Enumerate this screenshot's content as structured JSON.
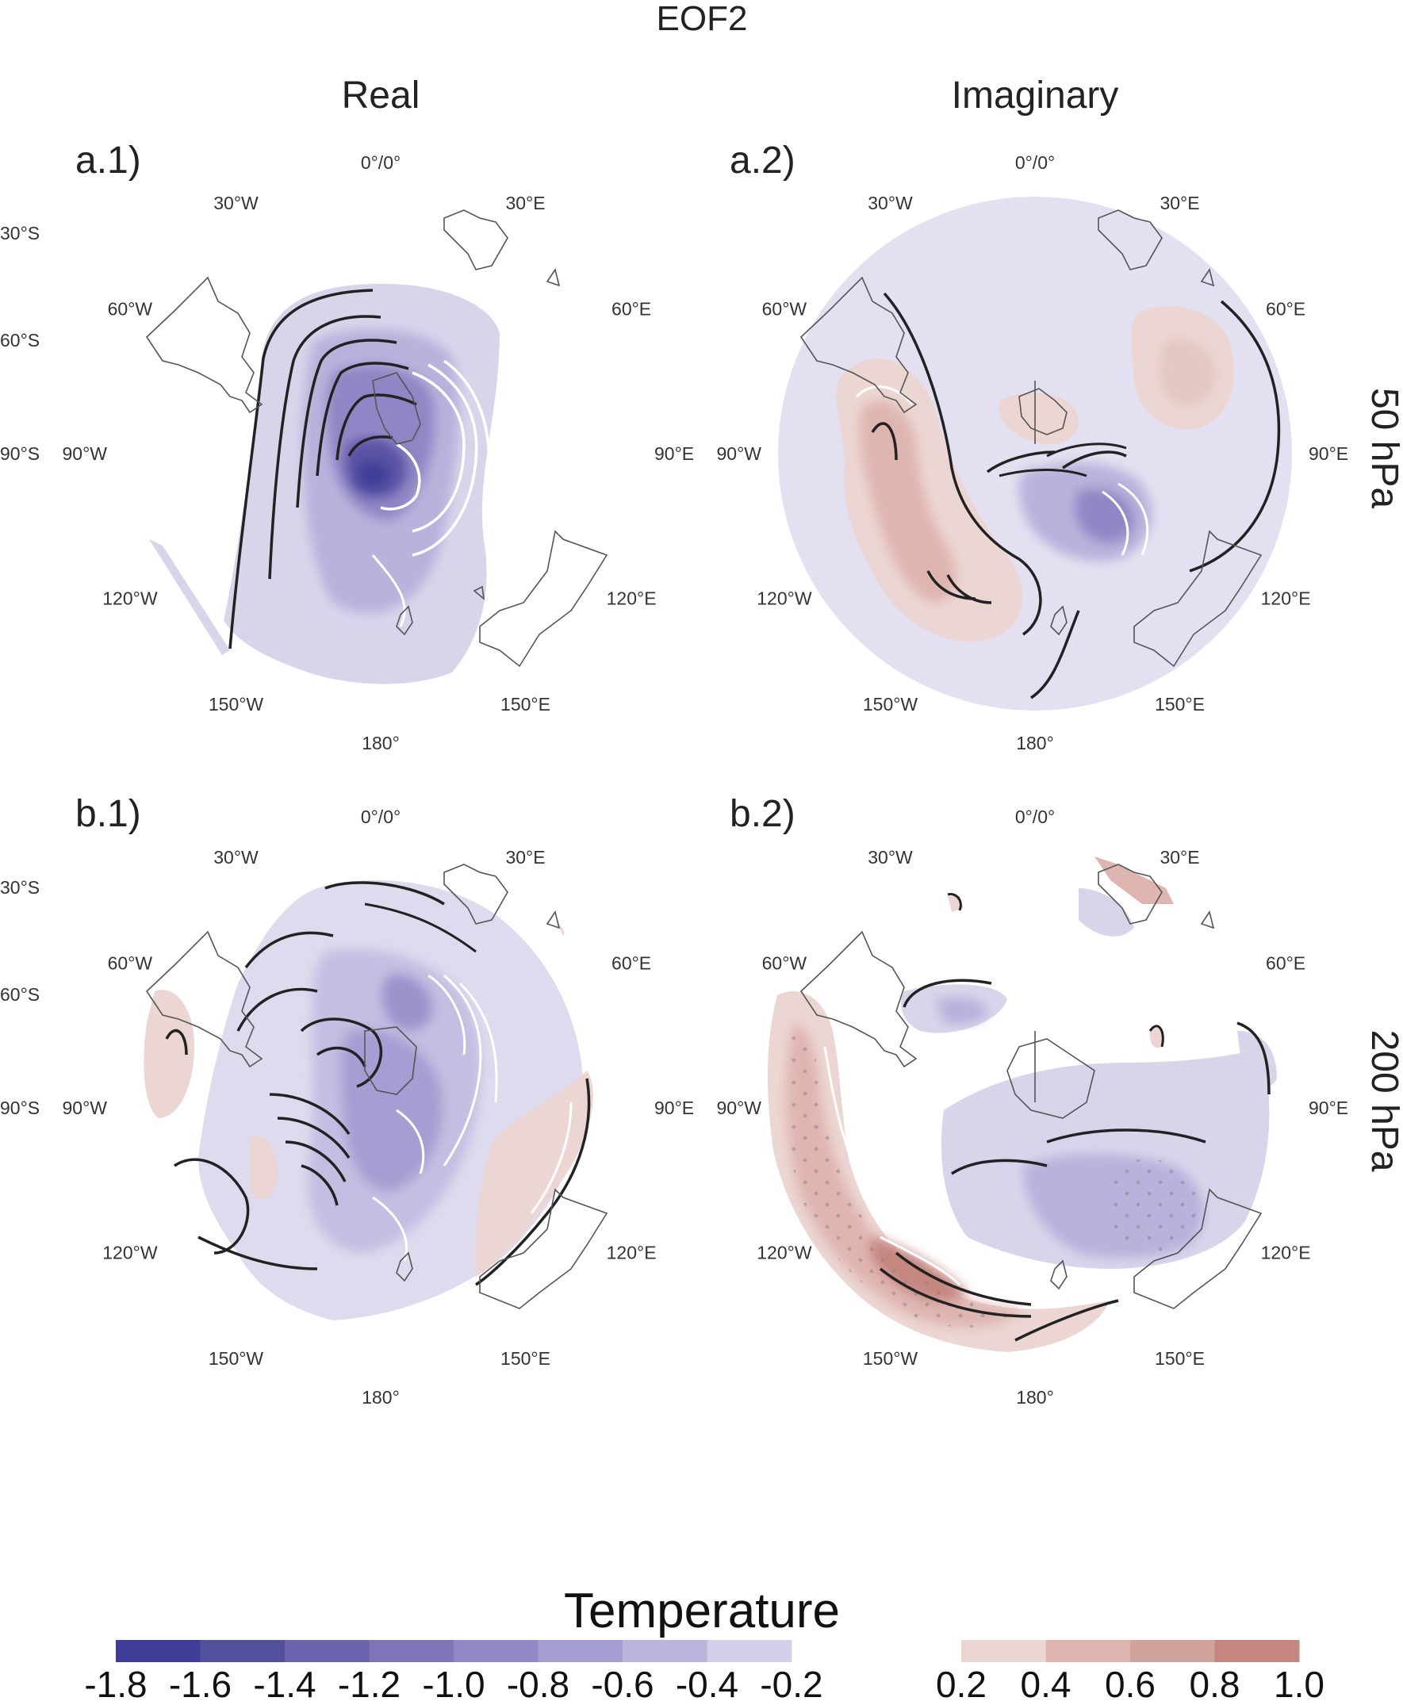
{
  "title": "EOF2",
  "column_titles": [
    "Real",
    "Imaginary"
  ],
  "level_labels": [
    "50 hPa",
    "200 hPa"
  ],
  "panels": [
    {
      "label": "a.1)",
      "level": "50 hPa",
      "part": "Real"
    },
    {
      "label": "a.2)",
      "level": "50 hPa",
      "part": "Imaginary"
    },
    {
      "label": "b.1)",
      "level": "200 hPa",
      "part": "Real"
    },
    {
      "label": "b.2)",
      "level": "200 hPa",
      "part": "Imaginary"
    }
  ],
  "longitude_labels": [
    "0°/0°",
    "30°E",
    "60°E",
    "90°E",
    "120°E",
    "150°E",
    "180°",
    "150°W",
    "120°W",
    "90°W",
    "60°W",
    "30°W"
  ],
  "latitude_labels": [
    "30°S",
    "60°S",
    "90°S"
  ],
  "colorbar": {
    "title": "Temperature",
    "negative_ticks": [
      "-1.8",
      "-1.6",
      "-1.4",
      "-1.2",
      "-1.0",
      "-0.8",
      "-0.6",
      "-0.4",
      "-0.2"
    ],
    "negative_colors": [
      "#3f3d98",
      "#55509e",
      "#6b63ae",
      "#7f76ba",
      "#9189c6",
      "#a59ed2",
      "#bbb5de",
      "#d3cfea",
      "#e4e2f2"
    ],
    "positive_ticks": [
      "0.2",
      "0.4",
      "0.6",
      "0.8",
      "1.0"
    ],
    "positive_colors": [
      "#ecd6d3",
      "#dfb5b0",
      "#d0a29c",
      "#c58780"
    ]
  },
  "colors": {
    "negative_accent": "#6b63ae",
    "positive_accent": "#c58780",
    "contour_dark": "#222222",
    "contour_light": "#ffffff"
  }
}
